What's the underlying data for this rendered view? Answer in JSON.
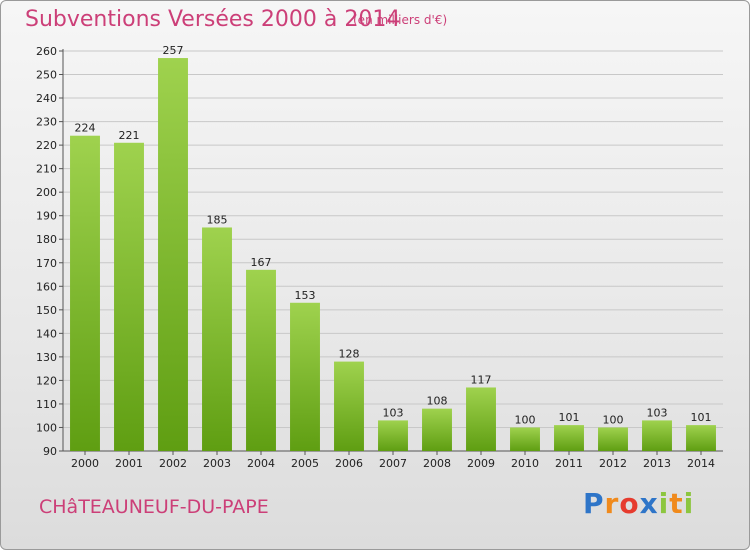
{
  "header": {
    "title": "Subventions Versées 2000 à 2014",
    "subtitle": "(en milliers d'€)"
  },
  "footer": {
    "commune": "CHâTEAUNEUF-DU-PAPE",
    "logo_text": "Proxiti",
    "logo_colors": [
      "#2e75c8",
      "#f08a1c",
      "#e63b2e",
      "#2e75c8",
      "#8cc63f",
      "#f08a1c",
      "#8cc63f"
    ]
  },
  "colors": {
    "title": "#cc3f78",
    "bar_light": "#9fd24e",
    "bar_dark": "#5f9e12",
    "grid": "#c8c8c8"
  },
  "chart_data": {
    "type": "bar",
    "title": "Subventions Versées 2000 à 2014",
    "subtitle": "(en milliers d'€)",
    "categories": [
      "2000",
      "2001",
      "2002",
      "2003",
      "2004",
      "2005",
      "2006",
      "2007",
      "2008",
      "2009",
      "2010",
      "2011",
      "2012",
      "2013",
      "2014"
    ],
    "values": [
      224,
      221,
      257,
      185,
      167,
      153,
      128,
      103,
      108,
      117,
      100,
      101,
      100,
      103,
      101
    ],
    "ylim": [
      90,
      260
    ],
    "yticks": [
      90,
      100,
      110,
      120,
      130,
      140,
      150,
      160,
      170,
      180,
      190,
      200,
      210,
      220,
      230,
      240,
      250,
      260
    ],
    "grid": true,
    "xlabel": "",
    "ylabel": ""
  }
}
